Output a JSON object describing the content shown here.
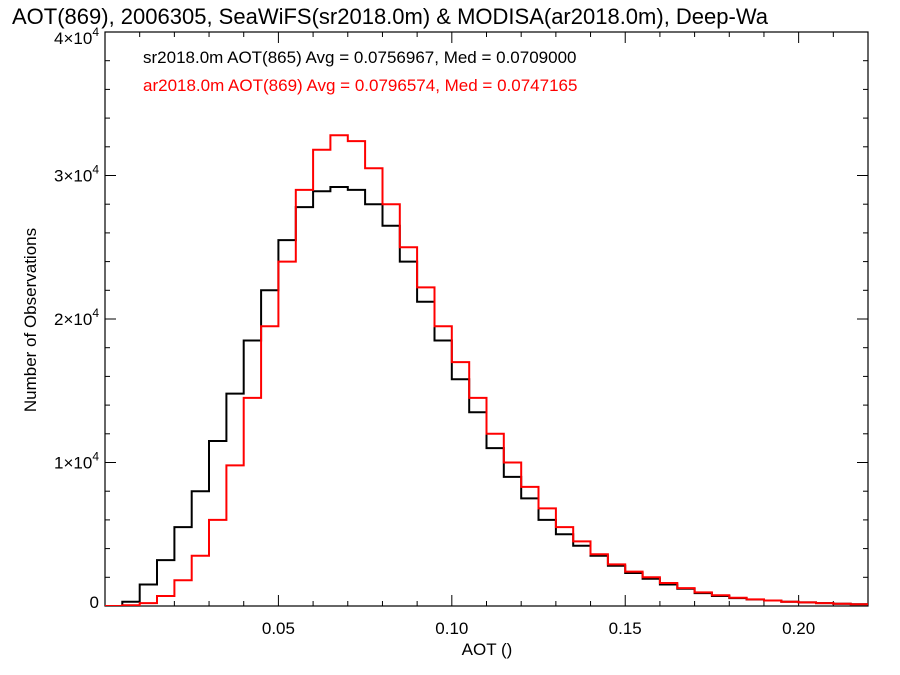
{
  "chart_data": {
    "type": "line",
    "title": "AOT(869), 2006305, SeaWiFS(sr2018.0m) & MODISA(ar2018.0m), Deep-Wa",
    "xlabel": "AOT ()",
    "ylabel": "Number of Observations",
    "xlim": [
      0.0,
      0.22
    ],
    "ylim": [
      0,
      40000
    ],
    "x_ticks": [
      {
        "value": 0.05,
        "label": "0.05"
      },
      {
        "value": 0.1,
        "label": "0.10"
      },
      {
        "value": 0.15,
        "label": "0.15"
      },
      {
        "value": 0.2,
        "label": "0.20"
      }
    ],
    "y_ticks": [
      {
        "value": 0,
        "mantissa": "0",
        "exponent": ""
      },
      {
        "value": 10000,
        "mantissa": "1×10",
        "exponent": "4"
      },
      {
        "value": 20000,
        "mantissa": "2×10",
        "exponent": "4"
      },
      {
        "value": 30000,
        "mantissa": "3×10",
        "exponent": "4"
      },
      {
        "value": 40000,
        "mantissa": "4×10",
        "exponent": "4"
      }
    ],
    "grid": false,
    "legend_position": "top-left",
    "step": "histogram",
    "series": [
      {
        "name": "sr2018.0m AOT(865) Avg = 0.0756967, Med = 0.0709000",
        "color": "#000000",
        "x": [
          0.0,
          0.005,
          0.01,
          0.015,
          0.02,
          0.025,
          0.03,
          0.035,
          0.04,
          0.045,
          0.05,
          0.055,
          0.06,
          0.065,
          0.07,
          0.075,
          0.08,
          0.085,
          0.09,
          0.095,
          0.1,
          0.105,
          0.11,
          0.115,
          0.12,
          0.125,
          0.13,
          0.135,
          0.14,
          0.145,
          0.15,
          0.155,
          0.16,
          0.165,
          0.17,
          0.175,
          0.18,
          0.185,
          0.19,
          0.195,
          0.2,
          0.205,
          0.21,
          0.215,
          0.22
        ],
        "y": [
          0,
          300,
          1500,
          3200,
          5500,
          8000,
          11500,
          14800,
          18500,
          22000,
          25500,
          27800,
          28900,
          29200,
          29000,
          28000,
          26500,
          24000,
          21200,
          18500,
          15800,
          13500,
          11000,
          9000,
          7500,
          6000,
          5000,
          4200,
          3500,
          2800,
          2300,
          1900,
          1500,
          1200,
          900,
          700,
          550,
          450,
          380,
          300,
          250,
          200,
          150,
          120,
          80
        ]
      },
      {
        "name": "ar2018.0m AOT(869) Avg = 0.0796574, Med = 0.0747165",
        "color": "#ff0000",
        "x": [
          0.0,
          0.005,
          0.01,
          0.015,
          0.02,
          0.025,
          0.03,
          0.035,
          0.04,
          0.045,
          0.05,
          0.055,
          0.06,
          0.065,
          0.07,
          0.075,
          0.08,
          0.085,
          0.09,
          0.095,
          0.1,
          0.105,
          0.11,
          0.115,
          0.12,
          0.125,
          0.13,
          0.135,
          0.14,
          0.145,
          0.15,
          0.155,
          0.16,
          0.165,
          0.17,
          0.175,
          0.18,
          0.185,
          0.19,
          0.195,
          0.2,
          0.205,
          0.21,
          0.215,
          0.22
        ],
        "y": [
          0,
          50,
          200,
          700,
          1800,
          3500,
          6000,
          9800,
          14500,
          19500,
          24000,
          29000,
          31800,
          32800,
          32400,
          30500,
          28000,
          25000,
          22200,
          19500,
          17000,
          14500,
          12000,
          10000,
          8300,
          6800,
          5500,
          4500,
          3600,
          2900,
          2400,
          2000,
          1600,
          1250,
          950,
          750,
          580,
          460,
          380,
          300,
          250,
          200,
          160,
          120,
          80
        ]
      }
    ]
  }
}
